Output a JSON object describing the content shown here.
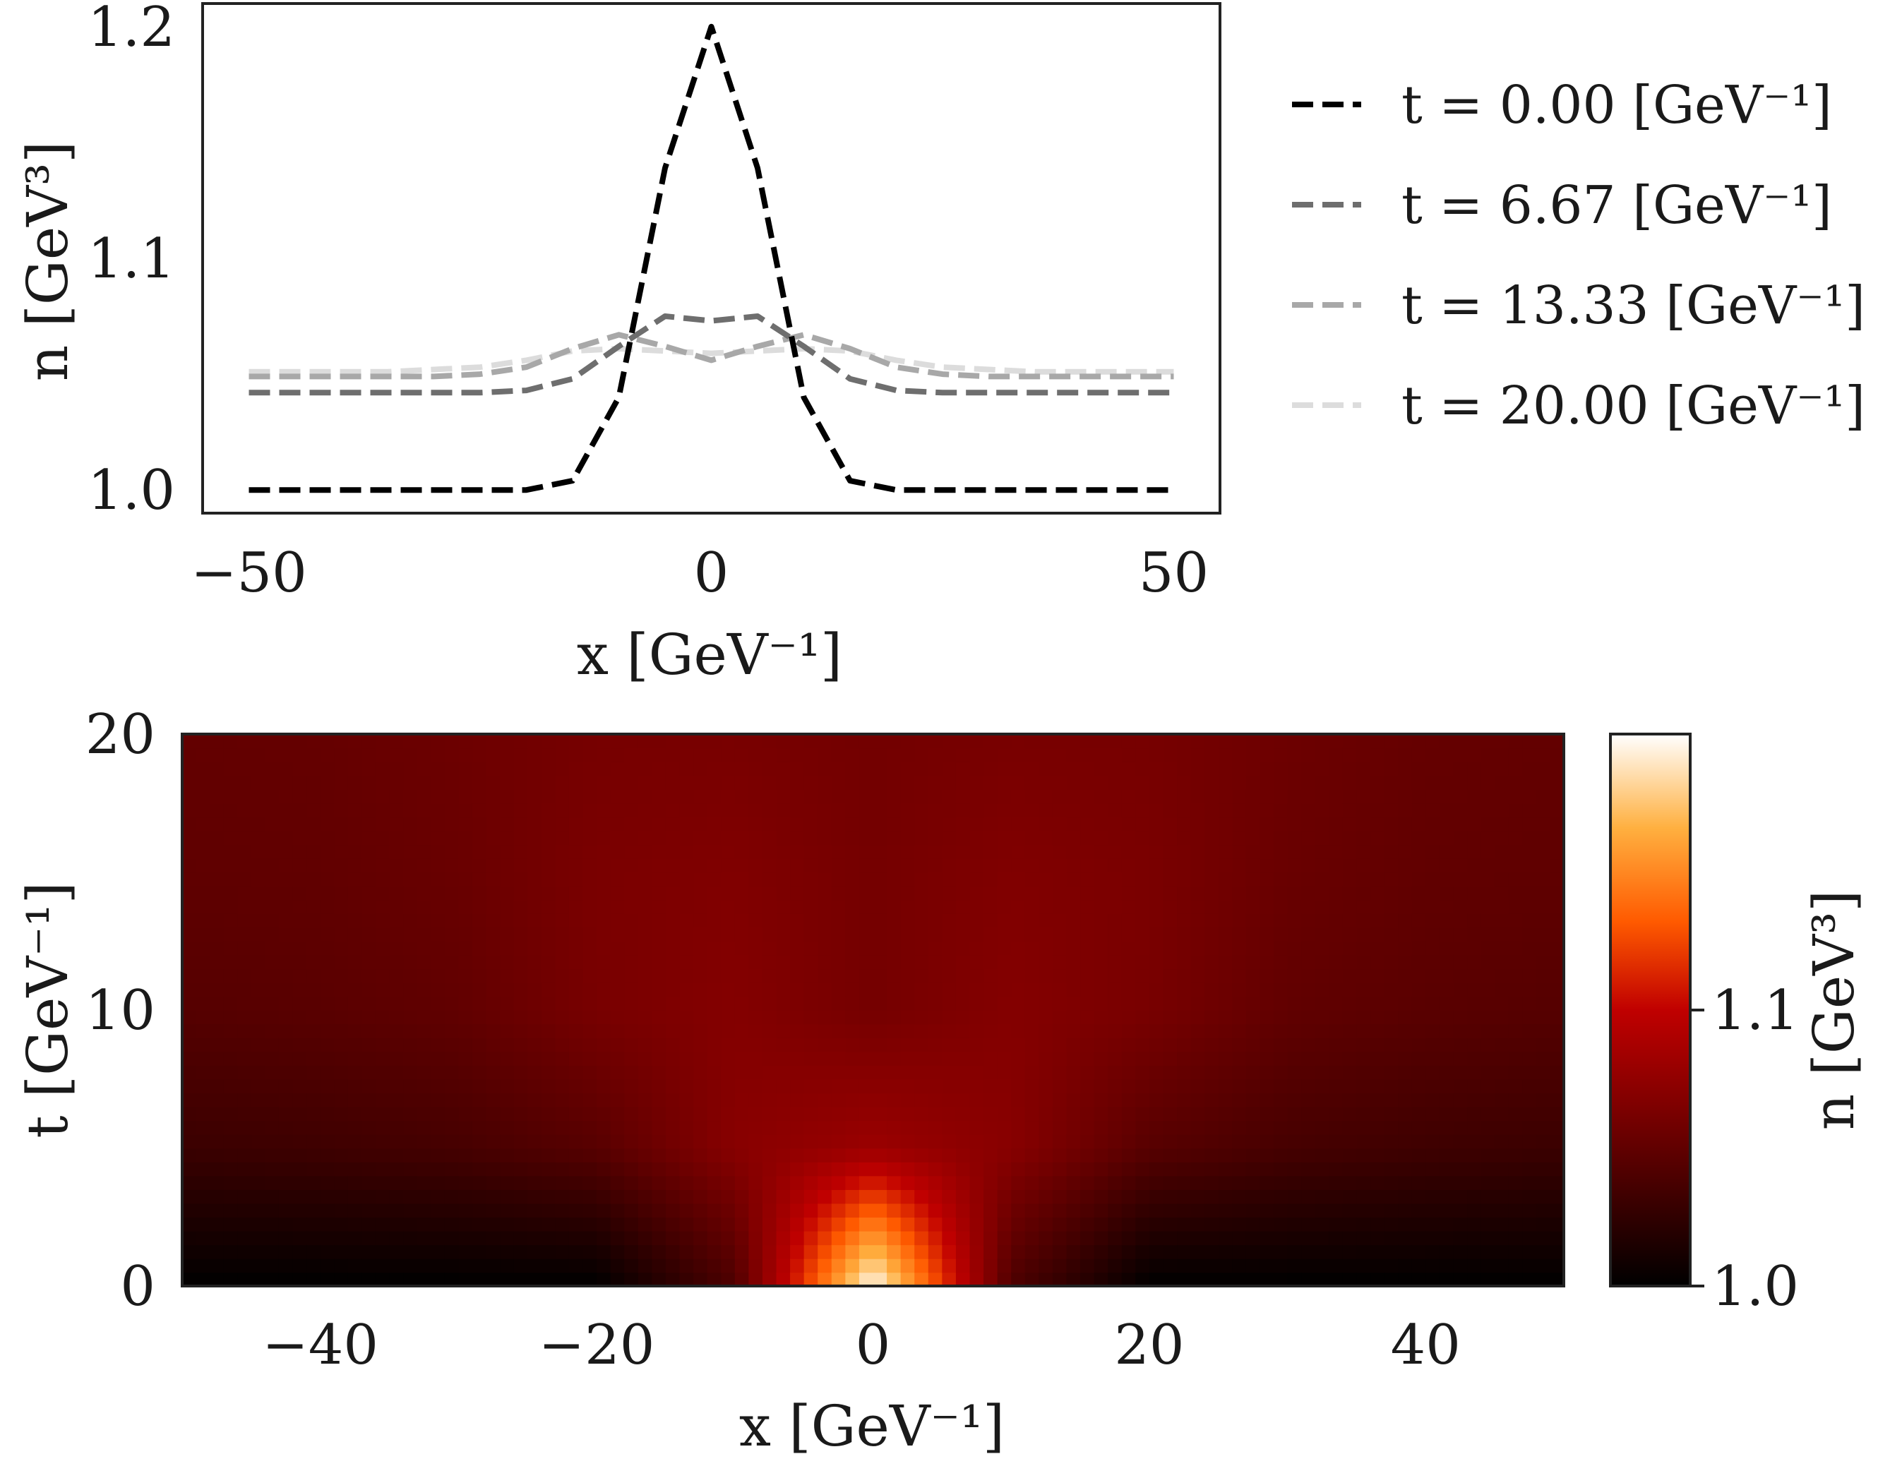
{
  "chart_data": [
    {
      "type": "line",
      "xlabel": "x [GeV⁻¹]",
      "ylabel": "n [GeV³]",
      "xlim": [
        -55,
        55
      ],
      "ylim": [
        0.99,
        1.21
      ],
      "xticks": [
        -50,
        0,
        50
      ],
      "xtick_labels": [
        "−50",
        "0",
        "50"
      ],
      "yticks": [
        1.0,
        1.1,
        1.2
      ],
      "ytick_labels": [
        "1.0",
        "1.1",
        "1.2"
      ],
      "legend_position": "outside-right",
      "x": [
        -50,
        -45,
        -40,
        -35,
        -30,
        -25,
        -20,
        -15,
        -10,
        -5,
        0,
        5,
        10,
        15,
        20,
        25,
        30,
        35,
        40,
        45,
        50
      ],
      "series": [
        {
          "name": "t = 0.00 [GeV⁻¹]",
          "color": "#000000",
          "values": [
            1.0,
            1.0,
            1.0,
            1.0,
            1.0,
            1.0,
            1.0,
            1.004,
            1.04,
            1.139,
            1.2,
            1.139,
            1.04,
            1.004,
            1.0,
            1.0,
            1.0,
            1.0,
            1.0,
            1.0,
            1.0
          ]
        },
        {
          "name": "t = 6.67 [GeV⁻¹]",
          "color": "#6e6e6e",
          "values": [
            1.042,
            1.042,
            1.042,
            1.042,
            1.042,
            1.042,
            1.043,
            1.048,
            1.062,
            1.075,
            1.073,
            1.075,
            1.062,
            1.048,
            1.043,
            1.042,
            1.042,
            1.042,
            1.042,
            1.042,
            1.042
          ]
        },
        {
          "name": "t = 13.33 [GeV⁻¹]",
          "color": "#a8a8a8",
          "values": [
            1.049,
            1.049,
            1.049,
            1.049,
            1.049,
            1.05,
            1.053,
            1.061,
            1.067,
            1.062,
            1.056,
            1.062,
            1.067,
            1.061,
            1.053,
            1.05,
            1.049,
            1.049,
            1.049,
            1.049,
            1.049
          ]
        },
        {
          "name": "t = 20.00 [GeV⁻¹]",
          "color": "#dcdcdc",
          "values": [
            1.051,
            1.051,
            1.051,
            1.051,
            1.052,
            1.053,
            1.056,
            1.06,
            1.061,
            1.06,
            1.059,
            1.06,
            1.061,
            1.06,
            1.056,
            1.053,
            1.052,
            1.051,
            1.051,
            1.051,
            1.051
          ]
        }
      ]
    },
    {
      "type": "heatmap",
      "xlabel": "x [GeV⁻¹]",
      "ylabel": "t [GeV⁻¹]",
      "xlim": [
        -50,
        50
      ],
      "ylim": [
        0,
        20
      ],
      "xticks": [
        -40,
        -20,
        0,
        20,
        40
      ],
      "xtick_labels": [
        "−40",
        "−20",
        "0",
        "20",
        "40"
      ],
      "yticks": [
        0,
        10,
        20
      ],
      "ytick_labels": [
        "0",
        "10",
        "20"
      ],
      "colormap": "afmhot",
      "colorbar": {
        "label": "n [GeV³]",
        "range": [
          1.0,
          1.2
        ],
        "ticks": [
          1.0,
          1.1
        ],
        "tick_labels": [
          "1.0",
          "1.1"
        ]
      },
      "x": [
        -50,
        -40,
        -30,
        -20,
        -10,
        0,
        10,
        20,
        30,
        40,
        50
      ],
      "t": [
        0,
        5,
        10,
        15,
        20
      ],
      "values": [
        [
          1.0,
          1.0,
          1.0,
          1.0,
          1.04,
          1.2,
          1.04,
          1.0,
          1.0,
          1.0,
          1.0
        ],
        [
          1.03,
          1.032,
          1.036,
          1.045,
          1.07,
          1.08,
          1.07,
          1.045,
          1.036,
          1.032,
          1.03
        ],
        [
          1.044,
          1.046,
          1.05,
          1.062,
          1.068,
          1.06,
          1.068,
          1.062,
          1.05,
          1.046,
          1.044
        ],
        [
          1.049,
          1.05,
          1.054,
          1.063,
          1.066,
          1.06,
          1.066,
          1.063,
          1.054,
          1.05,
          1.049
        ],
        [
          1.051,
          1.052,
          1.056,
          1.061,
          1.062,
          1.059,
          1.062,
          1.061,
          1.056,
          1.052,
          1.051
        ]
      ]
    }
  ]
}
